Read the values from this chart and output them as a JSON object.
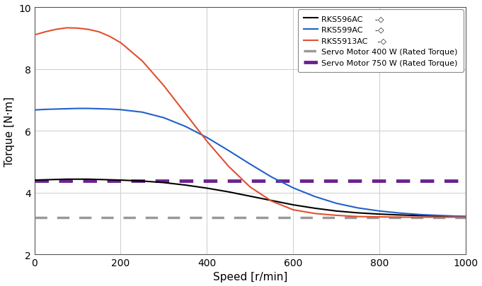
{
  "title": "",
  "xlabel": "Speed [r/min]",
  "ylabel": "Torque [N·m]",
  "xlim": [
    0,
    1000
  ],
  "ylim": [
    2,
    10
  ],
  "yticks": [
    2,
    4,
    6,
    8,
    10
  ],
  "xticks": [
    0,
    200,
    400,
    600,
    800,
    1000
  ],
  "servo_400w": 3.18,
  "servo_750w": 4.38,
  "servo_400w_color": "#999999",
  "servo_750w_color": "#6B238E",
  "rks596_color": "#000000",
  "rks599_color": "#2060CC",
  "rks5913_color": "#E05030",
  "legend_labels_rks": [
    "RKS596AC",
    "RKS599AC",
    "RKS5913AC"
  ],
  "legend_labels_servo": [
    "Servo Motor 400 W (Rated Torque)",
    "Servo Motor 750 W (Rated Torque)"
  ],
  "rks596_x": [
    0,
    25,
    50,
    75,
    100,
    125,
    150,
    175,
    200,
    250,
    300,
    350,
    400,
    450,
    500,
    550,
    600,
    650,
    700,
    750,
    800,
    850,
    900,
    950,
    1000
  ],
  "rks596_y": [
    4.4,
    4.41,
    4.42,
    4.43,
    4.43,
    4.43,
    4.42,
    4.41,
    4.4,
    4.37,
    4.32,
    4.24,
    4.14,
    4.02,
    3.88,
    3.74,
    3.6,
    3.49,
    3.4,
    3.34,
    3.3,
    3.27,
    3.25,
    3.23,
    3.22
  ],
  "rks599_x": [
    0,
    25,
    50,
    75,
    100,
    125,
    150,
    175,
    200,
    250,
    300,
    350,
    400,
    450,
    500,
    550,
    600,
    650,
    700,
    750,
    800,
    850,
    900,
    950,
    1000
  ],
  "rks599_y": [
    6.67,
    6.69,
    6.7,
    6.71,
    6.72,
    6.72,
    6.71,
    6.7,
    6.68,
    6.6,
    6.42,
    6.14,
    5.78,
    5.36,
    4.92,
    4.5,
    4.15,
    3.87,
    3.65,
    3.5,
    3.4,
    3.33,
    3.28,
    3.25,
    3.22
  ],
  "rks5913_x": [
    0,
    25,
    50,
    75,
    100,
    125,
    150,
    175,
    200,
    250,
    300,
    350,
    400,
    450,
    500,
    550,
    600,
    650,
    700,
    750,
    800,
    850,
    900,
    950,
    1000
  ],
  "rks5913_y": [
    9.1,
    9.2,
    9.28,
    9.33,
    9.32,
    9.28,
    9.2,
    9.05,
    8.85,
    8.26,
    7.46,
    6.56,
    5.66,
    4.85,
    4.18,
    3.72,
    3.44,
    3.32,
    3.26,
    3.22,
    3.21,
    3.2,
    3.2,
    3.2,
    3.2
  ]
}
